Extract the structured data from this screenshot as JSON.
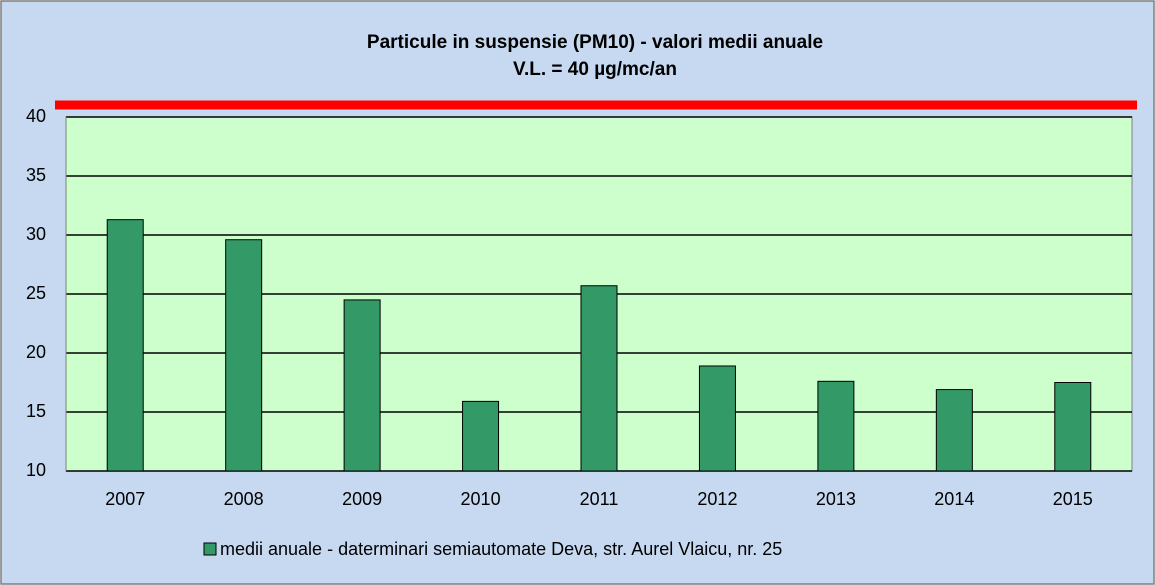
{
  "chart_data": {
    "type": "bar",
    "title": "Particule in suspensie (PM10) - valori medii anuale",
    "subtitle": "V.L. = 40 µg/mc/an",
    "categories": [
      "2007",
      "2008",
      "2009",
      "2010",
      "2011",
      "2012",
      "2013",
      "2014",
      "2015"
    ],
    "series": [
      {
        "name": "medii anuale - daterminari semiautomate Deva, str. Aurel Vlaicu, nr. 25",
        "color": "#339966",
        "values": [
          31.3,
          29.6,
          24.5,
          15.9,
          25.7,
          18.9,
          17.6,
          16.9,
          17.5
        ]
      }
    ],
    "ylim": [
      10,
      40
    ],
    "yticks": [
      10,
      15,
      20,
      25,
      30,
      35,
      40
    ],
    "grid": true
  }
}
